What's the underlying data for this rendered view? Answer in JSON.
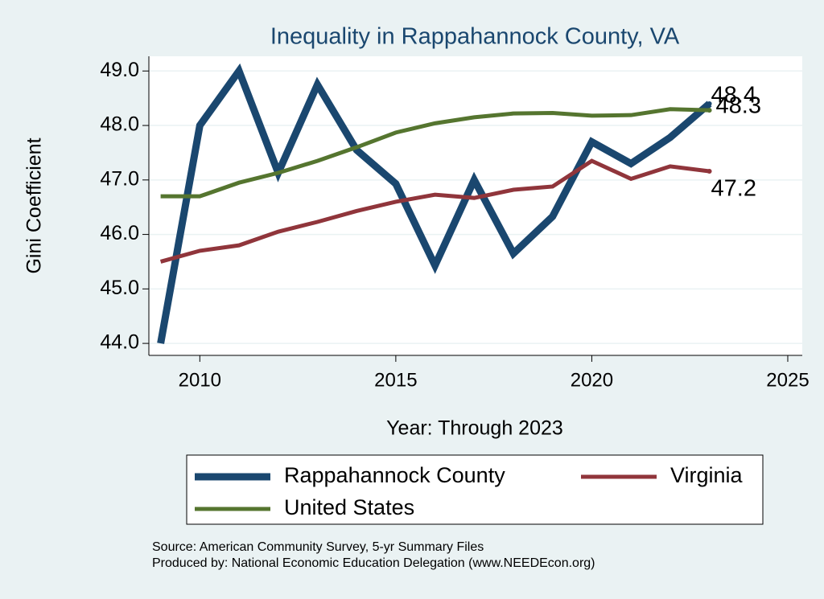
{
  "chart_data": {
    "type": "line",
    "title": "Inequality in Rappahannock County, VA",
    "x_label": "Year: Through 2023",
    "y_label": "Gini Coefficient",
    "x": [
      2009,
      2010,
      2011,
      2012,
      2013,
      2014,
      2015,
      2016,
      2017,
      2018,
      2019,
      2020,
      2021,
      2022,
      2023
    ],
    "series": [
      {
        "name": "Rappahannock County",
        "color": "#1a476f",
        "values": [
          44.0,
          48.0,
          49.0,
          47.13,
          48.75,
          47.55,
          46.93,
          45.43,
          47.0,
          45.65,
          46.33,
          47.7,
          47.3,
          47.78,
          48.4
        ],
        "value_labels": [
          null,
          null,
          null,
          null,
          null,
          null,
          null,
          null,
          null,
          null,
          null,
          null,
          null,
          null,
          "48.4"
        ]
      },
      {
        "name": "Virginia",
        "color": "#90353b",
        "values": [
          45.5,
          45.7,
          45.8,
          46.05,
          46.23,
          46.43,
          46.6,
          46.73,
          46.67,
          46.82,
          46.88,
          47.35,
          47.02,
          47.25,
          47.16
        ],
        "value_labels": [
          null,
          null,
          null,
          null,
          null,
          null,
          null,
          null,
          null,
          null,
          null,
          null,
          null,
          null,
          "47.2"
        ]
      },
      {
        "name": "United States",
        "color": "#55752f",
        "values": [
          46.7,
          46.7,
          46.95,
          47.13,
          47.35,
          47.6,
          47.87,
          48.04,
          48.15,
          48.22,
          48.23,
          48.18,
          48.19,
          48.3,
          48.28
        ],
        "value_labels": [
          null,
          null,
          null,
          null,
          null,
          null,
          null,
          null,
          null,
          null,
          null,
          null,
          null,
          null,
          "48.3"
        ]
      }
    ],
    "xlim": [
      2008.7,
      2025.37
    ],
    "xticks": [
      2010,
      2015,
      2020,
      2025
    ],
    "ylim": [
      43.78,
      49.27
    ],
    "yticks": [
      {
        "value": 44,
        "label": "44.0"
      },
      {
        "value": 45,
        "label": "45.0"
      },
      {
        "value": 46,
        "label": "46.0"
      },
      {
        "value": 47,
        "label": "47.0"
      },
      {
        "value": 48,
        "label": "48.0"
      },
      {
        "value": 49,
        "label": "49.0"
      }
    ],
    "grid": true,
    "notes": [
      "Source: American Community Survey, 5-yr Summary Files",
      "Produced by: National Economic Education Delegation (www.NEEDEcon.org)"
    ]
  }
}
